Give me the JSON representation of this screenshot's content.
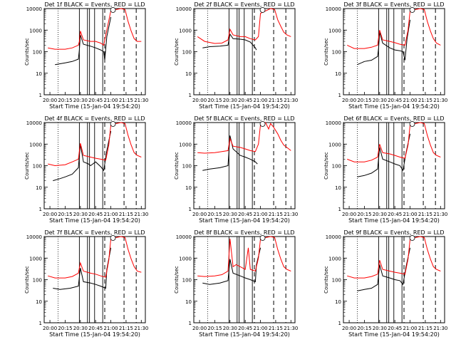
{
  "figure": {
    "x_ticks": [
      "20:00",
      "20:15",
      "20:30",
      "20:45",
      "21:00",
      "21:15",
      "21:30"
    ],
    "y_ticks": [
      "1",
      "10",
      "100",
      "1000",
      "10000"
    ],
    "xlabel": "Start Time (15-Jan-04 19:54:20)",
    "ylabel": "Counts/sec",
    "colors": {
      "events": "#000000",
      "lld": "#ff0000",
      "axes": "#000000"
    }
  },
  "chart_data": [
    {
      "type": "line",
      "title": "Det 1f BLACK = Events, RED = LLD",
      "xlabel": "Start Time (15-Jan-04 19:54:20)",
      "ylabel": "Counts/sec",
      "x_range": [
        "19:54:20",
        "21:34"
      ],
      "y_scale": "log",
      "ylim": [
        1,
        10000
      ],
      "series": [
        {
          "color": "#000000",
          "x": [
            "20:05",
            "20:15",
            "20:22",
            "20:28",
            "20:29",
            "20:30",
            "20:33",
            "20:40",
            "20:45",
            "20:50",
            "20:53",
            "20:54",
            "20:56",
            "21:00"
          ],
          "y": [
            25,
            30,
            35,
            45,
            120,
            600,
            220,
            180,
            150,
            120,
            100,
            40,
            500,
            4000
          ]
        },
        {
          "color": "#ff0000",
          "x": [
            "19:58",
            "20:05",
            "20:15",
            "20:22",
            "20:28",
            "20:29",
            "20:30",
            "20:33",
            "20:40",
            "20:45",
            "20:50",
            "20:53",
            "20:56",
            "21:00",
            "21:10",
            "21:14",
            "21:17",
            "21:20",
            "21:23",
            "21:26",
            "21:30"
          ],
          "y": [
            150,
            130,
            130,
            150,
            200,
            300,
            900,
            350,
            300,
            300,
            250,
            200,
            1000,
            8000,
            10000,
            9000,
            2500,
            900,
            400,
            300,
            300
          ]
        }
      ]
    },
    {
      "type": "line",
      "title": "Det 2f BLACK = Events, RED = LLD",
      "xlabel": "Start Time (15-Jan-04 19:54:20)",
      "ylabel": "Counts/sec",
      "x_range": [
        "19:54:20",
        "21:34"
      ],
      "y_scale": "log",
      "ylim": [
        1,
        10000
      ],
      "series": [
        {
          "color": "#000000",
          "x": [
            "20:03",
            "20:10",
            "20:20",
            "20:28",
            "20:30",
            "20:33",
            "20:40",
            "20:45",
            "20:50",
            "20:55",
            "20:56"
          ],
          "y": [
            150,
            170,
            180,
            200,
            650,
            400,
            380,
            350,
            280,
            150,
            120
          ]
        },
        {
          "color": "#ff0000",
          "x": [
            "19:58",
            "20:05",
            "20:15",
            "20:22",
            "20:28",
            "20:30",
            "20:33",
            "20:40",
            "20:45",
            "20:50",
            "20:55",
            "20:58",
            "21:00",
            "21:10",
            "21:14",
            "21:17",
            "21:20",
            "21:23",
            "21:26",
            "21:30"
          ],
          "y": [
            500,
            300,
            240,
            250,
            350,
            1100,
            600,
            500,
            500,
            400,
            350,
            500,
            6000,
            10000,
            9000,
            3000,
            1500,
            800,
            600,
            500
          ]
        }
      ]
    },
    {
      "type": "line",
      "title": "Det 3f BLACK = Events, RED = LLD",
      "xlabel": "Start Time (15-Jan-04 19:54:20)",
      "ylabel": "Counts/sec",
      "x_range": [
        "19:54:20",
        "21:34"
      ],
      "y_scale": "log",
      "ylim": [
        1,
        10000
      ],
      "series": [
        {
          "color": "#000000",
          "x": [
            "20:08",
            "20:15",
            "20:22",
            "20:28",
            "20:29",
            "20:30",
            "20:33",
            "20:40",
            "20:45",
            "20:50",
            "20:53",
            "20:55",
            "20:57",
            "21:00"
          ],
          "y": [
            25,
            35,
            40,
            60,
            150,
            800,
            250,
            150,
            120,
            110,
            100,
            40,
            400,
            3000
          ]
        },
        {
          "color": "#ff0000",
          "x": [
            "19:58",
            "20:05",
            "20:15",
            "20:22",
            "20:28",
            "20:30",
            "20:33",
            "20:40",
            "20:45",
            "20:50",
            "20:55",
            "20:58",
            "21:00",
            "21:10",
            "21:14",
            "21:17",
            "21:20",
            "21:23",
            "21:26",
            "21:30"
          ],
          "y": [
            200,
            140,
            140,
            160,
            200,
            1000,
            350,
            300,
            260,
            220,
            200,
            1000,
            8000,
            10000,
            9000,
            2500,
            900,
            400,
            250,
            200
          ]
        }
      ]
    },
    {
      "type": "line",
      "title": "Det 4f BLACK = Events, RED = LLD",
      "xlabel": "Start Time (15-Jan-04 19:54:20)",
      "ylabel": "Counts/sec",
      "x_range": [
        "19:54:20",
        "21:34"
      ],
      "y_scale": "log",
      "ylim": [
        1,
        10000
      ],
      "series": [
        {
          "color": "#000000",
          "x": [
            "20:03",
            "20:10",
            "20:15",
            "20:22",
            "20:28",
            "20:30",
            "20:33",
            "20:38",
            "20:40",
            "20:45",
            "20:50",
            "20:53",
            "20:56",
            "21:00"
          ],
          "y": [
            20,
            25,
            30,
            40,
            80,
            1000,
            150,
            120,
            100,
            150,
            90,
            60,
            500,
            4000
          ]
        },
        {
          "color": "#ff0000",
          "x": [
            "19:58",
            "20:05",
            "20:15",
            "20:22",
            "20:28",
            "20:30",
            "20:33",
            "20:40",
            "20:45",
            "20:50",
            "20:55",
            "20:58",
            "21:00",
            "21:10",
            "21:14",
            "21:17",
            "21:20",
            "21:23",
            "21:26",
            "21:30"
          ],
          "y": [
            120,
            100,
            110,
            150,
            200,
            1100,
            300,
            250,
            220,
            200,
            180,
            900,
            8000,
            10000,
            9000,
            2500,
            900,
            400,
            300,
            250
          ]
        }
      ]
    },
    {
      "type": "line",
      "title": "Det 5f BLACK = Events, RED = LLD",
      "xlabel": "Start Time (15-Jan-04 19:54:20)",
      "ylabel": "Counts/sec",
      "x_range": [
        "19:54:20",
        "21:34"
      ],
      "y_scale": "log",
      "ylim": [
        1,
        10000
      ],
      "series": [
        {
          "color": "#000000",
          "x": [
            "20:03",
            "20:10",
            "20:20",
            "20:28",
            "20:30",
            "20:33",
            "20:40",
            "20:45",
            "20:50",
            "20:55",
            "20:57"
          ],
          "y": [
            60,
            70,
            80,
            100,
            2500,
            600,
            300,
            250,
            200,
            150,
            120
          ]
        },
        {
          "color": "#ff0000",
          "x": [
            "19:58",
            "20:05",
            "20:15",
            "20:22",
            "20:28",
            "20:30",
            "20:33",
            "20:40",
            "20:45",
            "20:50",
            "20:55",
            "20:58",
            "21:00",
            "21:05",
            "21:08",
            "21:10",
            "21:13",
            "21:17",
            "21:20",
            "21:23",
            "21:26",
            "21:30"
          ],
          "y": [
            400,
            380,
            400,
            450,
            500,
            1800,
            800,
            700,
            600,
            500,
            450,
            1000,
            8000,
            10000,
            5000,
            9000,
            6000,
            3000,
            1500,
            900,
            700,
            500
          ]
        }
      ]
    },
    {
      "type": "line",
      "title": "Det 6f BLACK = Events, RED = LLD",
      "xlabel": "Start Time (15-Jan-04 19:54:20)",
      "ylabel": "Counts/sec",
      "x_range": [
        "19:54:20",
        "21:34"
      ],
      "y_scale": "log",
      "ylim": [
        1,
        10000
      ],
      "series": [
        {
          "color": "#000000",
          "x": [
            "20:08",
            "20:15",
            "20:22",
            "20:28",
            "20:30",
            "20:33",
            "20:40",
            "20:45",
            "20:50",
            "20:53",
            "20:56",
            "21:00"
          ],
          "y": [
            30,
            35,
            45,
            70,
            700,
            200,
            150,
            120,
            100,
            60,
            400,
            3000
          ]
        },
        {
          "color": "#ff0000",
          "x": [
            "19:58",
            "20:05",
            "20:15",
            "20:22",
            "20:28",
            "20:30",
            "20:33",
            "20:40",
            "20:45",
            "20:50",
            "20:55",
            "20:58",
            "21:00",
            "21:10",
            "21:14",
            "21:17",
            "21:20",
            "21:23",
            "21:26",
            "21:30"
          ],
          "y": [
            200,
            150,
            150,
            180,
            250,
            1000,
            400,
            350,
            300,
            250,
            220,
            900,
            8000,
            10000,
            9000,
            2500,
            900,
            400,
            300,
            250
          ]
        }
      ]
    },
    {
      "type": "line",
      "title": "Det 7f BLACK = Events, RED = LLD",
      "xlabel": "Start Time (15-Jan-04 19:54:20)",
      "ylabel": "Counts/sec",
      "x_range": [
        "19:54:20",
        "21:34"
      ],
      "y_scale": "log",
      "ylim": [
        1,
        10000
      ],
      "series": [
        {
          "color": "#000000",
          "x": [
            "20:03",
            "20:10",
            "20:20",
            "20:28",
            "20:30",
            "20:33",
            "20:40",
            "20:45",
            "20:50",
            "20:55",
            "20:56",
            "21:00"
          ],
          "y": [
            40,
            35,
            40,
            50,
            350,
            80,
            70,
            60,
            50,
            40,
            300,
            3000
          ]
        },
        {
          "color": "#ff0000",
          "x": [
            "19:58",
            "20:05",
            "20:15",
            "20:22",
            "20:28",
            "20:30",
            "20:33",
            "20:40",
            "20:45",
            "20:50",
            "20:55",
            "20:58",
            "21:00",
            "21:10",
            "21:14",
            "21:17",
            "21:20",
            "21:23",
            "21:26",
            "21:30"
          ],
          "y": [
            150,
            120,
            120,
            140,
            200,
            600,
            250,
            200,
            180,
            150,
            130,
            800,
            8000,
            10000,
            9000,
            2500,
            900,
            400,
            250,
            220
          ]
        }
      ]
    },
    {
      "type": "line",
      "title": "Det 8f BLACK = Events, RED = LLD",
      "xlabel": "Start Time (15-Jan-04 19:54:20)",
      "ylabel": "Counts/sec",
      "x_range": [
        "19:54:20",
        "21:34"
      ],
      "y_scale": "log",
      "ylim": [
        1,
        10000
      ],
      "series": [
        {
          "color": "#000000",
          "x": [
            "20:03",
            "20:10",
            "20:20",
            "20:28",
            "20:30",
            "20:33",
            "20:40",
            "20:45",
            "20:50",
            "20:55",
            "20:56",
            "21:00"
          ],
          "y": [
            70,
            60,
            70,
            90,
            900,
            200,
            150,
            120,
            100,
            80,
            500,
            3000
          ]
        },
        {
          "color": "#ff0000",
          "x": [
            "19:58",
            "20:05",
            "20:15",
            "20:22",
            "20:28",
            "20:30",
            "20:33",
            "20:36",
            "20:40",
            "20:45",
            "20:48",
            "20:50",
            "20:55",
            "20:58",
            "21:00",
            "21:10",
            "21:14",
            "21:17",
            "21:20",
            "21:23",
            "21:26",
            "21:30"
          ],
          "y": [
            150,
            140,
            150,
            170,
            250,
            8000,
            400,
            500,
            400,
            300,
            3000,
            300,
            250,
            1000,
            8000,
            10000,
            9000,
            2500,
            900,
            400,
            300,
            250
          ]
        }
      ]
    },
    {
      "type": "line",
      "title": "Det 9f BLACK = Events, RED = LLD",
      "xlabel": "Start Time (15-Jan-04 19:54:20)",
      "ylabel": "Counts/sec",
      "x_range": [
        "19:54:20",
        "21:34"
      ],
      "y_scale": "log",
      "ylim": [
        1,
        10000
      ],
      "series": [
        {
          "color": "#000000",
          "x": [
            "20:08",
            "20:15",
            "20:22",
            "20:28",
            "20:30",
            "20:33",
            "20:40",
            "20:45",
            "20:50",
            "20:53",
            "20:56",
            "21:00"
          ],
          "y": [
            30,
            35,
            40,
            60,
            500,
            150,
            120,
            100,
            90,
            60,
            400,
            3000
          ]
        },
        {
          "color": "#ff0000",
          "x": [
            "19:58",
            "20:05",
            "20:15",
            "20:22",
            "20:28",
            "20:30",
            "20:33",
            "20:40",
            "20:45",
            "20:50",
            "20:55",
            "20:58",
            "21:00",
            "21:10",
            "21:14",
            "21:17",
            "21:20",
            "21:23",
            "21:26",
            "21:30"
          ],
          "y": [
            150,
            120,
            120,
            140,
            180,
            800,
            300,
            250,
            220,
            200,
            180,
            900,
            8000,
            10000,
            9000,
            2500,
            900,
            400,
            300,
            250
          ]
        }
      ]
    }
  ]
}
